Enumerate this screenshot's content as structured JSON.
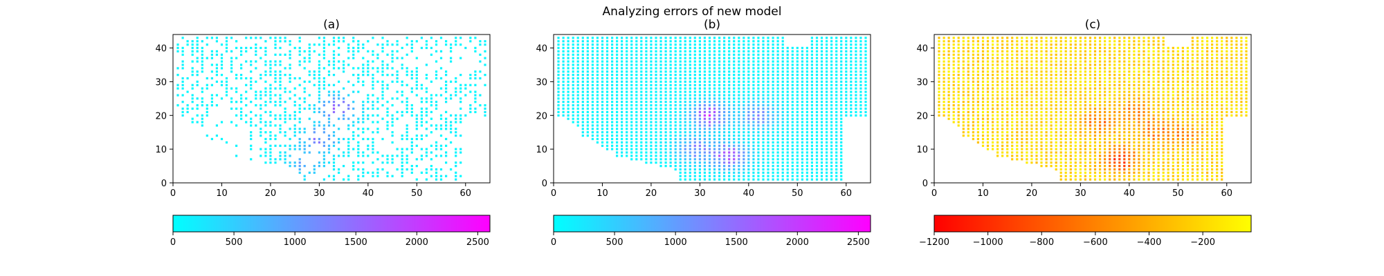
{
  "figure": {
    "suptitle": "Analyzing errors of new model"
  },
  "chart_data": [
    {
      "type": "scatter",
      "title": "(a)",
      "xlim": [
        0,
        65
      ],
      "ylim": [
        0,
        44
      ],
      "x_ticks": [
        0,
        10,
        20,
        30,
        40,
        50,
        60
      ],
      "y_ticks": [
        0,
        10,
        20,
        30,
        40
      ],
      "grid_points": "sparse",
      "colorbar": {
        "orientation": "horizontal",
        "colormap": "cool",
        "range": [
          0,
          2600
        ],
        "ticks": [
          0,
          500,
          1000,
          1500,
          2000,
          2500
        ],
        "tick_labels": [
          "0",
          "500",
          "1000",
          "1500",
          "2000",
          "2500"
        ]
      },
      "hotspots": [
        {
          "x": 34,
          "y": 22,
          "value": 1900
        },
        {
          "x": 30,
          "y": 13,
          "value": 1500
        },
        {
          "x": 27,
          "y": 6,
          "value": 1000
        }
      ]
    },
    {
      "type": "scatter",
      "title": "(b)",
      "xlim": [
        0,
        65
      ],
      "ylim": [
        0,
        44
      ],
      "x_ticks": [
        0,
        10,
        20,
        30,
        40,
        50,
        60
      ],
      "y_ticks": [
        0,
        10,
        20,
        30,
        40
      ],
      "grid_points": "dense",
      "colorbar": {
        "orientation": "horizontal",
        "colormap": "cool",
        "range": [
          0,
          2600
        ],
        "ticks": [
          0,
          500,
          1000,
          1500,
          2000,
          2500
        ],
        "tick_labels": [
          "0",
          "500",
          "1000",
          "1500",
          "2000",
          "2500"
        ]
      },
      "hotspots": [
        {
          "x": 32,
          "y": 20,
          "value": 2300
        },
        {
          "x": 36,
          "y": 8,
          "value": 2100
        },
        {
          "x": 42,
          "y": 20,
          "value": 1400
        },
        {
          "x": 29,
          "y": 10,
          "value": 1500
        }
      ]
    },
    {
      "type": "scatter",
      "title": "(c)",
      "xlim": [
        0,
        65
      ],
      "ylim": [
        0,
        44
      ],
      "x_ticks": [
        0,
        10,
        20,
        30,
        40,
        50,
        60
      ],
      "y_ticks": [
        0,
        10,
        20,
        30,
        40
      ],
      "grid_points": "dense",
      "colorbar": {
        "orientation": "horizontal",
        "colormap": "autumn",
        "range": [
          -1200,
          -20
        ],
        "ticks": [
          -1200,
          -1000,
          -800,
          -600,
          -400,
          -200
        ],
        "tick_labels": [
          "−1200",
          "−1000",
          "−800",
          "−600",
          "−400",
          "−200"
        ]
      },
      "hotspots": [
        {
          "x": 38,
          "y": 7,
          "value": -1150
        },
        {
          "x": 34,
          "y": 18,
          "value": -800
        },
        {
          "x": 45,
          "y": 16,
          "value": -750
        },
        {
          "x": 51,
          "y": 14,
          "value": -700
        },
        {
          "x": 41,
          "y": 22,
          "value": -650
        }
      ]
    }
  ]
}
